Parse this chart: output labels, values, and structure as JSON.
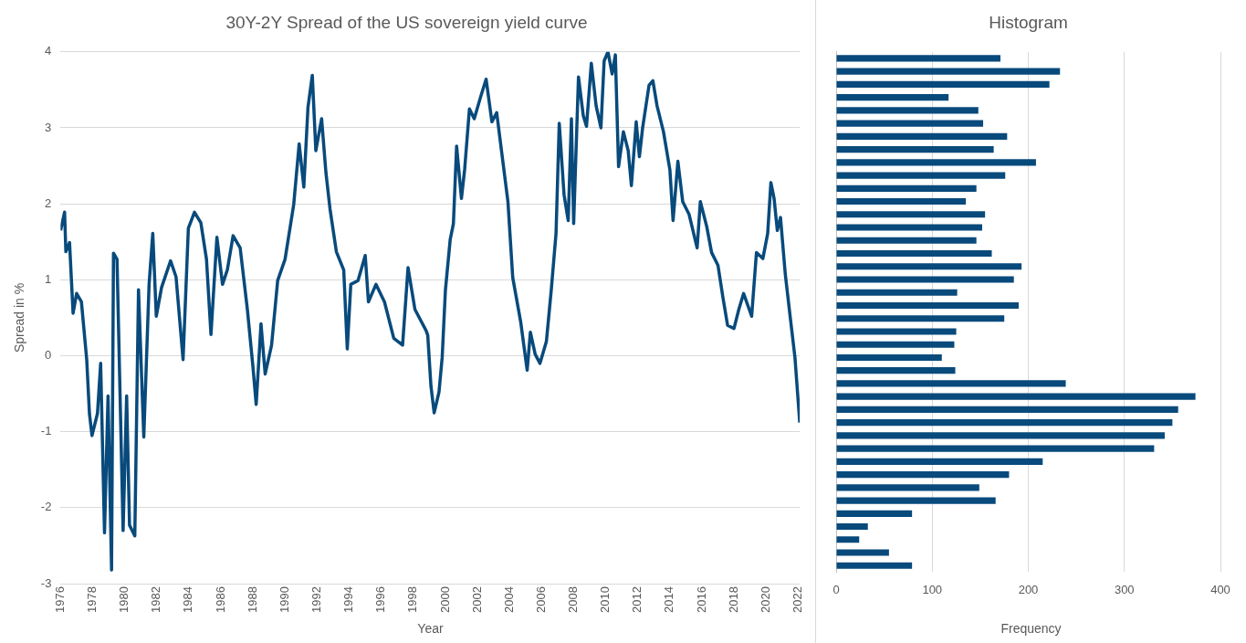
{
  "chart_data": [
    {
      "type": "line",
      "title": "30Y-2Y Spread of the US sovereign yield curve",
      "xlabel": "Year",
      "ylabel": "Spread in %",
      "x": [
        1976.0,
        1976.25,
        1976.33,
        1976.56,
        1976.78,
        1977.0,
        1977.3,
        1977.63,
        1977.8,
        1977.96,
        1978.3,
        1978.5,
        1978.74,
        1978.96,
        1979.18,
        1979.3,
        1979.52,
        1979.9,
        1980.12,
        1980.3,
        1980.63,
        1980.86,
        1981.19,
        1981.52,
        1981.75,
        1981.97,
        1982.3,
        1982.86,
        1983.2,
        1983.64,
        1983.97,
        1984.35,
        1984.75,
        1985.1,
        1985.38,
        1985.75,
        1986.1,
        1986.4,
        1986.76,
        1987.2,
        1987.65,
        1988.0,
        1988.2,
        1988.5,
        1988.76,
        1989.16,
        1989.54,
        1990.0,
        1990.54,
        1990.88,
        1991.17,
        1991.43,
        1991.7,
        1991.92,
        1992.28,
        1992.55,
        1992.8,
        1993.2,
        1993.66,
        1993.88,
        1994.1,
        1994.55,
        1995.0,
        1995.2,
        1995.67,
        1996.2,
        1996.78,
        1997.33,
        1997.67,
        1998.1,
        1998.8,
        1998.9,
        1999.1,
        1999.3,
        1999.6,
        1999.8,
        2000.0,
        2000.3,
        2000.5,
        2000.7,
        2001.0,
        2001.2,
        2001.5,
        2001.8,
        2002.2,
        2002.54,
        2002.9,
        2003.2,
        2003.6,
        2003.9,
        2004.2,
        2004.7,
        2005.1,
        2005.3,
        2005.6,
        2005.9,
        2006.3,
        2006.6,
        2006.9,
        2007.1,
        2007.4,
        2007.66,
        2007.86,
        2008.0,
        2008.3,
        2008.6,
        2008.8,
        2009.1,
        2009.4,
        2009.7,
        2009.9,
        2010.14,
        2010.4,
        2010.6,
        2010.8,
        2011.1,
        2011.4,
        2011.6,
        2011.9,
        2012.1,
        2012.3,
        2012.7,
        2012.94,
        2013.2,
        2013.6,
        2014.0,
        2014.2,
        2014.5,
        2014.8,
        2015.2,
        2015.7,
        2015.9,
        2016.3,
        2016.6,
        2017.0,
        2017.3,
        2017.6,
        2018.0,
        2018.3,
        2018.6,
        2019.1,
        2019.4,
        2019.8,
        2020.1,
        2020.3,
        2020.5,
        2020.7,
        2020.9,
        2021.2,
        2021.5,
        2021.8,
        2022.1
      ],
      "series": [
        {
          "color": "#084a7c",
          "values": [
            1.65,
            1.89,
            1.37,
            1.49,
            0.56,
            0.82,
            0.71,
            -0.05,
            -0.76,
            -1.05,
            -0.76,
            -0.1,
            -2.33,
            -0.53,
            -2.82,
            1.35,
            1.27,
            -2.3,
            -0.53,
            -2.23,
            -2.37,
            0.87,
            -1.07,
            0.94,
            1.61,
            0.52,
            0.9,
            1.25,
            1.04,
            -0.05,
            1.68,
            1.89,
            1.75,
            1.27,
            0.28,
            1.56,
            0.94,
            1.13,
            1.58,
            1.42,
            0.61,
            -0.15,
            -0.64,
            0.42,
            -0.24,
            0.14,
            0.99,
            1.27,
            1.99,
            2.79,
            2.22,
            3.27,
            3.69,
            2.7,
            3.12,
            2.41,
            1.94,
            1.37,
            1.13,
            0.09,
            0.94,
            0.99,
            1.32,
            0.71,
            0.94,
            0.71,
            0.23,
            0.14,
            1.16,
            0.61,
            0.33,
            0.27,
            -0.4,
            -0.75,
            -0.48,
            -0.02,
            0.86,
            1.53,
            1.74,
            2.76,
            2.07,
            2.45,
            3.25,
            3.12,
            3.41,
            3.64,
            3.08,
            3.2,
            2.53,
            2.03,
            1.03,
            0.44,
            -0.19,
            0.31,
            0.02,
            -0.1,
            0.19,
            0.86,
            1.61,
            3.06,
            2.12,
            1.78,
            3.12,
            1.74,
            3.67,
            3.16,
            3.02,
            3.85,
            3.29,
            3.0,
            3.88,
            4.0,
            3.71,
            3.96,
            2.49,
            2.95,
            2.7,
            2.24,
            3.08,
            2.62,
            3.0,
            3.56,
            3.62,
            3.29,
            2.95,
            2.45,
            1.78,
            2.56,
            2.03,
            1.86,
            1.42,
            2.03,
            1.7,
            1.36,
            1.19,
            0.78,
            0.4,
            0.36,
            0.61,
            0.82,
            0.52,
            1.36,
            1.28,
            1.61,
            2.28,
            2.07,
            1.65,
            1.82,
            1.07,
            0.52,
            -0.02,
            -0.88
          ]
        }
      ],
      "xlim": [
        1976,
        2022.1
      ],
      "xticks": [
        1976,
        1978,
        1980,
        1982,
        1984,
        1986,
        1988,
        1990,
        1992,
        1994,
        1996,
        1998,
        2000,
        2002,
        2004,
        2006,
        2008,
        2010,
        2012,
        2014,
        2016,
        2018,
        2020,
        2022
      ],
      "ylim": [
        -3,
        4
      ],
      "yticks": [
        -3,
        -2,
        -1,
        0,
        1,
        2,
        3,
        4
      ],
      "grid": "y"
    },
    {
      "type": "bar",
      "orientation": "horizontal",
      "title": "Histogram",
      "xlabel": "Frequency",
      "categories": [
        null,
        null,
        null,
        null,
        null,
        null,
        null,
        null,
        null,
        null,
        null,
        null,
        null,
        null,
        null,
        null,
        null,
        null,
        null,
        null,
        null,
        null,
        null,
        null,
        null,
        null,
        null,
        null,
        null,
        null,
        null,
        null,
        null,
        null,
        null,
        null,
        null,
        null,
        null,
        null
      ],
      "color": "#084a7c",
      "values": [
        171,
        233,
        222,
        117,
        148,
        153,
        178,
        164,
        208,
        176,
        146,
        135,
        155,
        152,
        146,
        162,
        193,
        185,
        126,
        190,
        175,
        125,
        123,
        110,
        124,
        239,
        374,
        356,
        350,
        342,
        331,
        215,
        180,
        149,
        166,
        79,
        33,
        24,
        55,
        79
      ],
      "xlim": [
        0,
        400
      ],
      "xticks": [
        0,
        100,
        200,
        300,
        400
      ],
      "grid": "x",
      "tick_labels": "x"
    }
  ]
}
